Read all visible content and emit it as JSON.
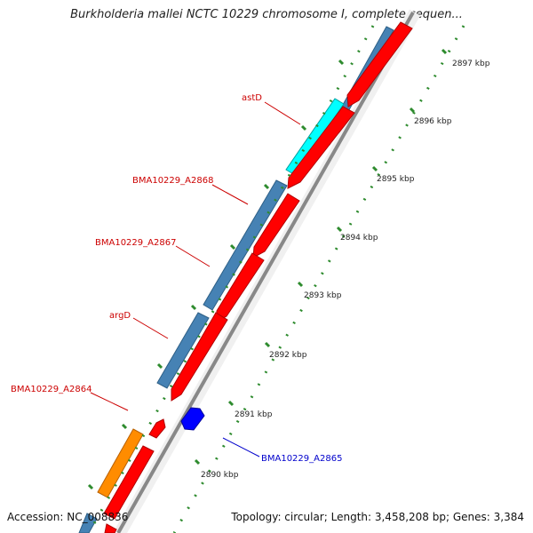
{
  "title": "Burkholderia mallei NCTC 10229 chromosome I, complete sequen...",
  "footer": {
    "accession_label": "Accession:",
    "accession": "NC_008836",
    "topology": "Topology: circular;",
    "length": "Length: 3,458,208 bp;",
    "genes": "Genes: 3,384"
  },
  "ruler": [
    "2890 kbp",
    "2891 kbp",
    "2892 kbp",
    "2893 kbp",
    "2894 kbp",
    "2895 kbp",
    "2896 kbp",
    "2897 kbp"
  ],
  "gene_labels": {
    "astD": "astD",
    "a2868": "BMA10229_A2868",
    "a2867": "BMA10229_A2867",
    "argD": "argD",
    "a2864": "BMA10229_A2864",
    "a2865": "BMA10229_A2865"
  },
  "colors": {
    "cds_forward": "#ff0000",
    "cds_reverse": "#4682b4",
    "gene_highlight_cyan": "#00ffff",
    "gene_highlight_orange": "#ff8c00",
    "gene_blue": "#0000ff",
    "backbone": "#808080",
    "tick": "#2e8b2e",
    "label_red": "#cc0000",
    "label_blue": "#0000cc"
  }
}
